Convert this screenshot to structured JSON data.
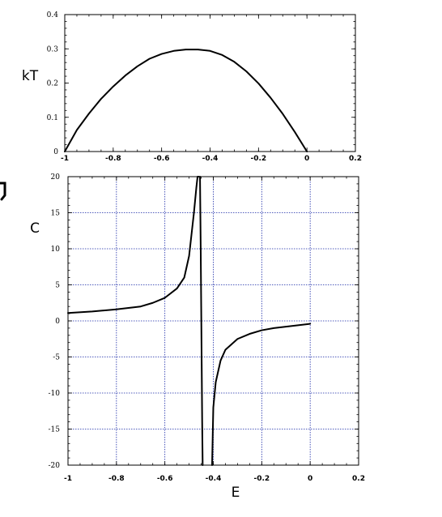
{
  "chart_data": [
    {
      "type": "line",
      "title": "",
      "xlabel": "",
      "ylabel": "kT",
      "xlim": [
        -1,
        0.2
      ],
      "ylim": [
        0,
        0.4
      ],
      "grid": false,
      "xticks": [
        "-1",
        "-0.8",
        "-0.6",
        "-0.4",
        "-0.2",
        "0",
        "0.2"
      ],
      "yticks": [
        "0",
        "0.1",
        "0.2",
        "0.3",
        "0.4"
      ],
      "series": [
        {
          "x": [
            -1.0,
            -0.95,
            -0.9,
            -0.85,
            -0.8,
            -0.75,
            -0.7,
            -0.65,
            -0.6,
            -0.55,
            -0.5,
            -0.45,
            -0.4,
            -0.35,
            -0.3,
            -0.25,
            -0.2,
            -0.15,
            -0.1,
            -0.05,
            0.0
          ],
          "y": [
            0.0,
            0.063,
            0.111,
            0.154,
            0.19,
            0.222,
            0.249,
            0.271,
            0.285,
            0.294,
            0.298,
            0.298,
            0.294,
            0.282,
            0.262,
            0.234,
            0.199,
            0.157,
            0.11,
            0.057,
            0.0
          ]
        }
      ]
    },
    {
      "type": "line",
      "title": "",
      "xlabel": "E",
      "ylabel": "C",
      "xlim": [
        -1,
        0.2
      ],
      "ylim": [
        -20,
        20
      ],
      "grid": true,
      "xticks": [
        "-1",
        "-0.8",
        "-0.6",
        "-0.4",
        "-0.2",
        "0",
        "0.2"
      ],
      "yticks": [
        "-20",
        "-15",
        "-10",
        "-5",
        "0",
        "5",
        "10",
        "15",
        "20"
      ],
      "series": [
        {
          "x": [
            -1.0,
            -0.9,
            -0.8,
            -0.7,
            -0.65,
            -0.6,
            -0.55,
            -0.52,
            -0.5,
            -0.49,
            -0.48,
            -0.47,
            -0.465,
            -0.46
          ],
          "y": [
            1.1,
            1.3,
            1.6,
            2.0,
            2.5,
            3.2,
            4.5,
            6.0,
            9.0,
            12.0,
            15.0,
            18.5,
            20.0,
            20.0
          ]
        },
        {
          "x": [
            -0.455,
            -0.452,
            -0.45,
            -0.448,
            -0.446,
            -0.444
          ],
          "y": [
            20.0,
            10.0,
            2.0,
            -6.0,
            -14.0,
            -20.0
          ]
        },
        {
          "x": [
            -0.405,
            -0.4,
            -0.39,
            -0.37,
            -0.35,
            -0.3,
            -0.25,
            -0.2,
            -0.15,
            -0.1,
            -0.05,
            0.0
          ],
          "y": [
            -20.0,
            -12.0,
            -8.5,
            -5.5,
            -4.0,
            -2.5,
            -1.8,
            -1.3,
            -1.0,
            -0.8,
            -0.6,
            -0.4
          ]
        }
      ]
    }
  ],
  "colors": {
    "curve": "#000000",
    "grid": "#1a2aa8",
    "frame": "#000000"
  }
}
